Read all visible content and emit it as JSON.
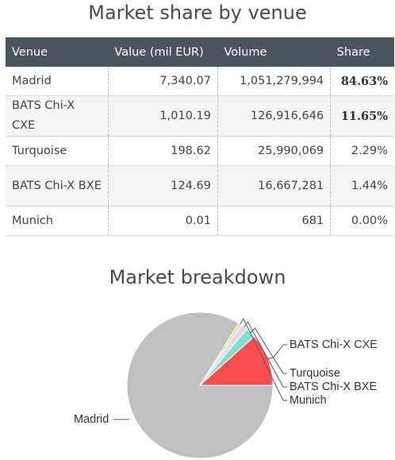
{
  "title_share": "Market share by venue",
  "title_breakdown": "Market breakdown",
  "table": {
    "headers": [
      "Venue",
      "Value (mil EUR)",
      "Volume",
      "Share"
    ],
    "rows": [
      {
        "venue": "Madrid",
        "value": "7,340.07",
        "volume": "1,051,279,994",
        "share": "84.63%",
        "bold": true
      },
      {
        "venue": "BATS Chi-X CXE",
        "value": "1,010.19",
        "volume": "126,916,646",
        "share": "11.65%",
        "bold": true
      },
      {
        "venue": "Turquoise",
        "value": "198.62",
        "volume": "25,990,069",
        "share": "2.29%",
        "bold": false
      },
      {
        "venue": "BATS Chi-X BXE",
        "value": "124.69",
        "volume": "16,667,281",
        "share": "1.44%",
        "bold": false
      },
      {
        "venue": "Munich",
        "value": "0.01",
        "volume": "681",
        "share": "0.00%",
        "bold": false
      }
    ]
  },
  "chart_data": {
    "type": "pie",
    "title": "Market breakdown",
    "slices": [
      {
        "label": "Madrid",
        "value": 84.63,
        "color": "#c0c0c0"
      },
      {
        "label": "BATS Chi-X CXE",
        "value": 11.65,
        "color": "#f94f4f"
      },
      {
        "label": "Turquoise",
        "value": 2.29,
        "color": "#7fe0cf"
      },
      {
        "label": "BATS Chi-X BXE",
        "value": 1.44,
        "color": "#e6d6f0"
      },
      {
        "label": "Munich",
        "value": 0.0,
        "color": "#f0e08a"
      }
    ]
  }
}
